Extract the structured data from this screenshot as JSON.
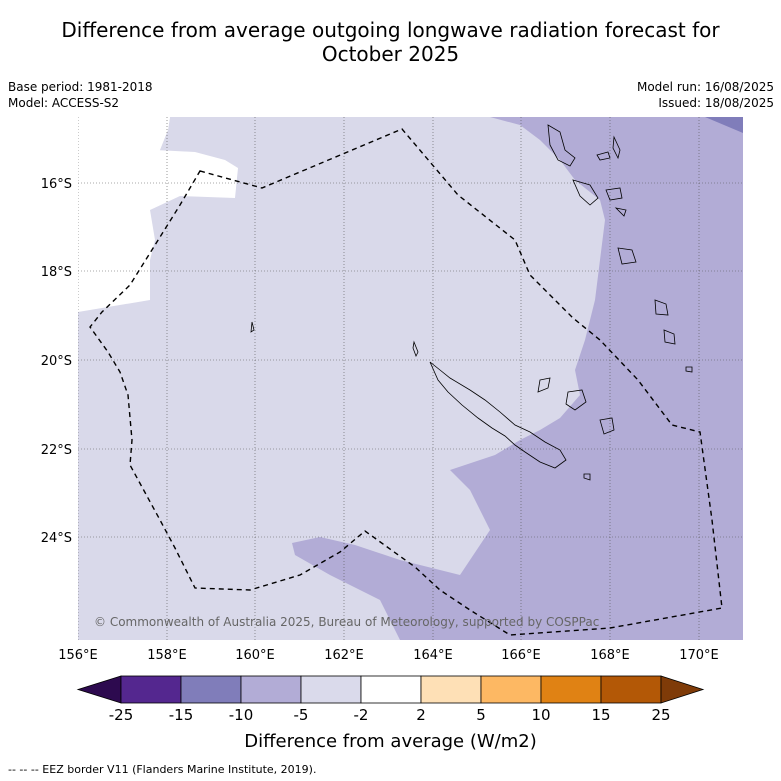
{
  "title": {
    "line1": "Difference from average outgoing longwave radiation forecast for",
    "line2": "October 2025"
  },
  "meta": {
    "base_period": "Base period: 1981-2018",
    "model": "Model: ACCESS-S2",
    "model_run": "Model run: 16/08/2025",
    "issued": "Issued: 18/08/2025"
  },
  "map": {
    "lon_labels": [
      "156°E",
      "158°E",
      "160°E",
      "162°E",
      "164°E",
      "166°E",
      "168°E",
      "170°E"
    ],
    "lat_labels": [
      "16°S",
      "18°S",
      "20°S",
      "22°S",
      "24°S"
    ],
    "credit": "© Commonwealth of Australia 2025, Bureau of Meteorology, supported by COSPPac"
  },
  "colorbar": {
    "labels": [
      "-25",
      "-15",
      "-10",
      "-5",
      "-2",
      "2",
      "5",
      "10",
      "15",
      "25"
    ],
    "colors": [
      "#2d0a4f",
      "#54278f",
      "#807dba",
      "#b2acd6",
      "#dadaeb",
      "#ffffff",
      "#fee0b6",
      "#fdb863",
      "#e08214",
      "#b35806",
      "#7f3b08"
    ],
    "title": "Difference from average (W/m2)"
  },
  "footnote": "--  --  -- EEZ border V11 (Flanders Marine Institute, 2019)."
}
